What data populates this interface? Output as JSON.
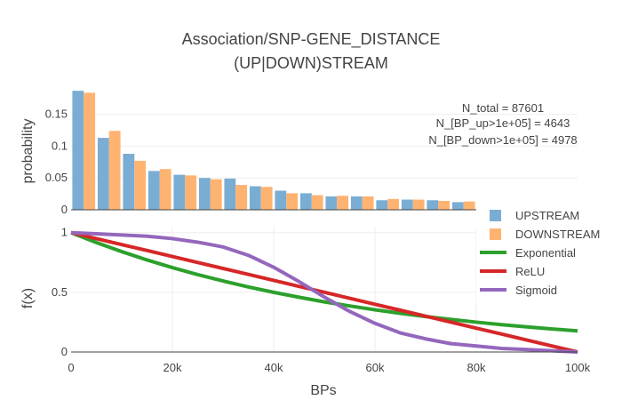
{
  "title_lines": [
    "Association/SNP-GENE_DISTANCE",
    "(UP|DOWN)STREAM"
  ],
  "chart_data": [
    {
      "id": "histogram",
      "type": "bar",
      "ylabel": "probability",
      "ylim": [
        0,
        0.19
      ],
      "yticks": [
        0,
        0.05,
        0.1,
        0.15
      ],
      "ytick_labels": [
        "0",
        "0.05",
        "0.1",
        "0.15"
      ],
      "xlim": [
        0,
        100000
      ],
      "bin_width": 5000,
      "grid": true,
      "series": [
        {
          "name": "UPSTREAM",
          "color": "#7aadd3",
          "values": [
            0.187,
            0.113,
            0.088,
            0.061,
            0.055,
            0.05,
            0.049,
            0.037,
            0.03,
            0.026,
            0.021,
            0.021,
            0.015,
            0.016,
            0.015,
            0.012
          ]
        },
        {
          "name": "DOWNSTREAM",
          "color": "#ffb371",
          "values": [
            0.184,
            0.124,
            0.077,
            0.064,
            0.054,
            0.048,
            0.039,
            0.036,
            0.026,
            0.023,
            0.022,
            0.021,
            0.017,
            0.016,
            0.014,
            0.013
          ]
        }
      ],
      "annotation_lines": [
        "N_total = 87601",
        "N_[BP_up>1e+05] = 4643",
        "N_[BP_down>1e+05] = 4978"
      ]
    },
    {
      "id": "functions",
      "type": "line",
      "xlabel": "BPs",
      "ylabel": "f(x)",
      "xlim": [
        0,
        100000
      ],
      "ylim": [
        0,
        1.05
      ],
      "xticks": [
        0,
        20000,
        40000,
        60000,
        80000,
        100000
      ],
      "xtick_labels": [
        "0",
        "20k",
        "40k",
        "60k",
        "80k",
        "100k"
      ],
      "yticks": [
        0,
        0.5,
        1
      ],
      "ytick_labels": [
        "0",
        "0.5",
        "1"
      ],
      "grid": true,
      "x": [
        0,
        5000,
        10000,
        15000,
        20000,
        25000,
        30000,
        35000,
        40000,
        45000,
        50000,
        55000,
        60000,
        65000,
        70000,
        75000,
        80000,
        85000,
        90000,
        95000,
        100000
      ],
      "series": [
        {
          "name": "Exponential",
          "color": "#2ca02c",
          "values": [
            1.0,
            0.917,
            0.841,
            0.771,
            0.707,
            0.648,
            0.595,
            0.545,
            0.5,
            0.459,
            0.42,
            0.386,
            0.354,
            0.324,
            0.297,
            0.273,
            0.25,
            0.229,
            0.21,
            0.193,
            0.177
          ]
        },
        {
          "name": "ReLU",
          "color": "#d62728",
          "values": [
            1.0,
            0.95,
            0.9,
            0.85,
            0.8,
            0.75,
            0.7,
            0.65,
            0.6,
            0.55,
            0.5,
            0.45,
            0.4,
            0.35,
            0.3,
            0.25,
            0.2,
            0.15,
            0.1,
            0.05,
            0.0
          ]
        },
        {
          "name": "Sigmoid",
          "color": "#9467bd",
          "values": [
            1.0,
            0.99,
            0.98,
            0.97,
            0.95,
            0.92,
            0.88,
            0.81,
            0.71,
            0.59,
            0.46,
            0.34,
            0.24,
            0.16,
            0.11,
            0.07,
            0.05,
            0.03,
            0.02,
            0.01,
            0.0
          ]
        }
      ]
    }
  ],
  "legend": {
    "position": "right",
    "items": [
      {
        "label": "UPSTREAM",
        "kind": "bar",
        "color": "#7aadd3"
      },
      {
        "label": "DOWNSTREAM",
        "kind": "bar",
        "color": "#ffb371"
      },
      {
        "label": "Exponential",
        "kind": "line",
        "color": "#2ca02c"
      },
      {
        "label": "ReLU",
        "kind": "line",
        "color": "#d62728"
      },
      {
        "label": "Sigmoid",
        "kind": "line",
        "color": "#9467bd"
      }
    ]
  }
}
